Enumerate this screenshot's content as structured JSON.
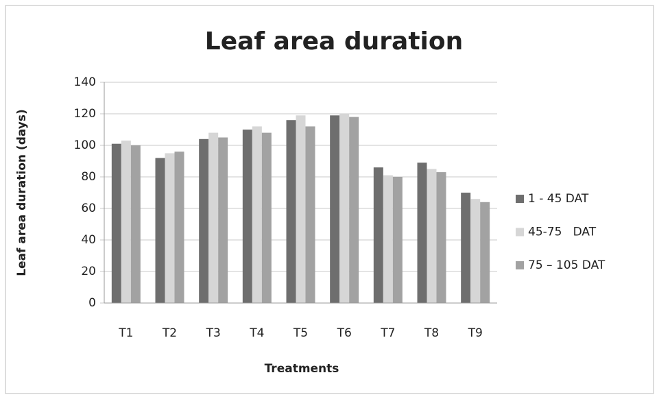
{
  "chart_data": {
    "type": "bar",
    "title": "Leaf area duration",
    "y_label": "Leaf area duration (days)",
    "x_label": "Treatments",
    "categories": [
      "T1",
      "T2",
      "T3",
      "T4",
      "T5",
      "T6",
      "T7",
      "T8",
      "T9"
    ],
    "series": [
      {
        "name": "1 - 45 DAT",
        "color": "#6e6e6e",
        "values": [
          101,
          92,
          104,
          110,
          116,
          119,
          86,
          89,
          70
        ]
      },
      {
        "name": "45-75   DAT",
        "color": "#d6d6d6",
        "values": [
          103,
          95,
          108,
          112,
          119,
          120,
          81,
          85,
          66
        ]
      },
      {
        "name": "75 – 105 DAT",
        "color": "#a2a2a2",
        "values": [
          100,
          96,
          105,
          108,
          112,
          118,
          80,
          83,
          64
        ]
      }
    ],
    "ylim": [
      0,
      140
    ],
    "yticks": [
      0,
      20,
      40,
      60,
      80,
      100,
      120,
      140
    ],
    "grid": true,
    "legend": "right"
  }
}
